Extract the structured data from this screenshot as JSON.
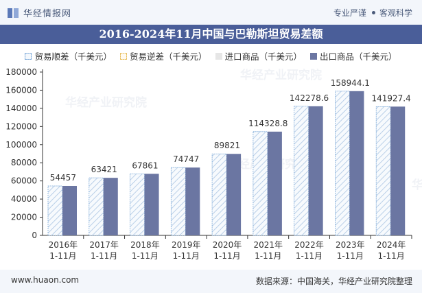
{
  "header": {
    "brand": "华经情报网",
    "tagline_left": "专业严谨",
    "tagline_right": "客观科学"
  },
  "title": "2016-2024年11月中国与巴勒斯坦贸易差额",
  "legend": [
    "贸易顺差（千美元）",
    "贸易逆差（千美元）",
    "进口商品（千美元）",
    "出口商品（千美元）"
  ],
  "watermark": "华经产业研究院",
  "footer": {
    "url": "www.huaon.com",
    "source": "数据来源：中国海关，华经产业研究院整理"
  },
  "colors": {
    "surplus_stroke": "#7aa8d8",
    "export_bar": "#6b76a2",
    "axis": "#333333",
    "title_bg": "#4a5e99"
  },
  "chart_data": {
    "type": "bar",
    "categories": [
      "2016年 1-11月",
      "2017年 1-11月",
      "2018年 1-11月",
      "2019年 1-11月",
      "2020年 1-11月",
      "2021年 1-11月",
      "2022年 1-11月",
      "2023年 1-11月",
      "2024年 1-11月"
    ],
    "series": [
      {
        "name": "贸易顺差（千美元）",
        "values": [
          54457,
          63421,
          67861,
          74747,
          89821,
          114328.8,
          142278.6,
          158944.1,
          141927.4
        ]
      },
      {
        "name": "贸易逆差（千美元）",
        "values": [
          0,
          0,
          0,
          0,
          0,
          0,
          0,
          0,
          0
        ]
      },
      {
        "name": "进口商品（千美元）",
        "values": [
          0,
          0,
          0,
          0,
          0,
          0,
          0,
          0,
          0
        ]
      },
      {
        "name": "出口商品（千美元）",
        "values": [
          54457,
          63421,
          67861,
          74747,
          89821,
          114328.8,
          142278.6,
          158944.1,
          141927.4
        ]
      }
    ],
    "labels": [
      "54457",
      "63421",
      "67861",
      "74747",
      "89821",
      "114328.8",
      "142278.6",
      "158944.1",
      "141927.4"
    ],
    "yticks": [
      0,
      20000,
      40000,
      60000,
      80000,
      100000,
      120000,
      140000,
      160000,
      180000
    ],
    "ylim": [
      0,
      180000
    ],
    "grid": false
  }
}
